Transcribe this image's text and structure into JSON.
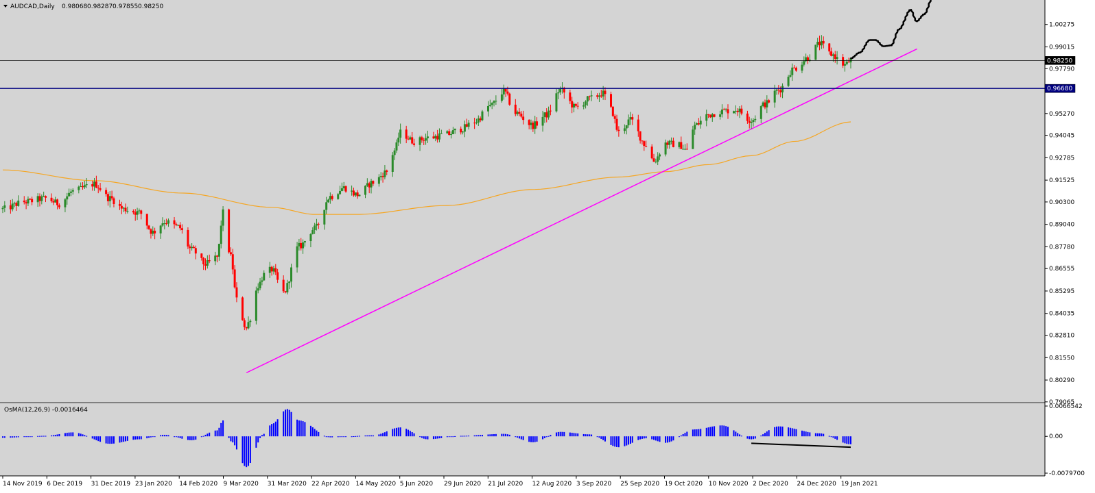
{
  "chart_data": {
    "type": "candlestick",
    "symbol_label": "AUDCAD,Daily",
    "ohlc_readout": [
      "0.98068",
      "0.98287",
      "0.97855",
      "0.98250"
    ],
    "colors": {
      "background": "#d4d4d4",
      "bull": "#2a8a2a",
      "bear": "#ff0000",
      "moving_average": "#f5a623",
      "trendline": "#ff00ff",
      "support_line": "#000080",
      "price_line": "#000000",
      "histogram": "#0000ff",
      "forecast_path": "#000000"
    },
    "price_axis": {
      "min": 0.7906,
      "max": 1.0165,
      "ticks": [
        "1.00275",
        "0.99015",
        "0.97790",
        "0.95270",
        "0.94045",
        "0.92785",
        "0.91525",
        "0.90300",
        "0.89040",
        "0.87780",
        "0.86555",
        "0.85295",
        "0.84035",
        "0.82810",
        "0.81550",
        "0.80290",
        "0.79065"
      ],
      "current_price_label": "0.98250",
      "current_price": 0.9825,
      "support_level_label": "0.96680",
      "support_level": 0.9668
    },
    "time_axis": {
      "labels": [
        "14 Nov 2019",
        "6 Dec 2019",
        "31 Dec 2019",
        "23 Jan 2020",
        "14 Feb 2020",
        "9 Mar 2020",
        "31 Mar 2020",
        "22 Apr 2020",
        "14 May 2020",
        "5 Jun 2020",
        "29 Jun 2020",
        "21 Jul 2020",
        "12 Aug 2020",
        "3 Sep 2020",
        "25 Sep 2020",
        "19 Oct 2020",
        "10 Nov 2020",
        "2 Dec 2020",
        "24 Dec 2020",
        "19 Jan 2021"
      ]
    },
    "price_path": [
      [
        "2019-11-14",
        0.899
      ],
      [
        "2019-11-25",
        0.903
      ],
      [
        "2019-12-06",
        0.905
      ],
      [
        "2019-12-13",
        0.902
      ],
      [
        "2019-12-20",
        0.909
      ],
      [
        "2019-12-31",
        0.913
      ],
      [
        "2020-01-08",
        0.905
      ],
      [
        "2020-01-15",
        0.899
      ],
      [
        "2020-01-23",
        0.897
      ],
      [
        "2020-01-30",
        0.886
      ],
      [
        "2020-02-05",
        0.892
      ],
      [
        "2020-02-12",
        0.889
      ],
      [
        "2020-02-19",
        0.876
      ],
      [
        "2020-02-26",
        0.868
      ],
      [
        "2020-03-03",
        0.872
      ],
      [
        "2020-03-06",
        0.897
      ],
      [
        "2020-03-10",
        0.872
      ],
      [
        "2020-03-13",
        0.848
      ],
      [
        "2020-03-18",
        0.832
      ],
      [
        "2020-03-20",
        0.838
      ],
      [
        "2020-03-24",
        0.856
      ],
      [
        "2020-03-27",
        0.862
      ],
      [
        "2020-03-31",
        0.865
      ],
      [
        "2020-04-06",
        0.852
      ],
      [
        "2020-04-14",
        0.878
      ],
      [
        "2020-04-22",
        0.888
      ],
      [
        "2020-04-30",
        0.906
      ],
      [
        "2020-05-07",
        0.911
      ],
      [
        "2020-05-14",
        0.907
      ],
      [
        "2020-05-22",
        0.914
      ],
      [
        "2020-05-29",
        0.92
      ],
      [
        "2020-06-02",
        0.932
      ],
      [
        "2020-06-05",
        0.942
      ],
      [
        "2020-06-12",
        0.937
      ],
      [
        "2020-06-19",
        0.939
      ],
      [
        "2020-06-29",
        0.941
      ],
      [
        "2020-07-06",
        0.944
      ],
      [
        "2020-07-13",
        0.948
      ],
      [
        "2020-07-21",
        0.957
      ],
      [
        "2020-07-28",
        0.965
      ],
      [
        "2020-08-03",
        0.953
      ],
      [
        "2020-08-12",
        0.946
      ],
      [
        "2020-08-19",
        0.952
      ],
      [
        "2020-08-26",
        0.966
      ],
      [
        "2020-09-03",
        0.956
      ],
      [
        "2020-09-10",
        0.961
      ],
      [
        "2020-09-17",
        0.964
      ],
      [
        "2020-09-21",
        0.955
      ],
      [
        "2020-09-25",
        0.942
      ],
      [
        "2020-10-01",
        0.949
      ],
      [
        "2020-10-09",
        0.935
      ],
      [
        "2020-10-13",
        0.926
      ],
      [
        "2020-10-19",
        0.936
      ],
      [
        "2020-10-26",
        0.935
      ],
      [
        "2020-10-30",
        0.932
      ],
      [
        "2020-11-03",
        0.946
      ],
      [
        "2020-11-10",
        0.952
      ],
      [
        "2020-11-17",
        0.954
      ],
      [
        "2020-11-24",
        0.955
      ],
      [
        "2020-12-02",
        0.949
      ],
      [
        "2020-12-09",
        0.958
      ],
      [
        "2020-12-16",
        0.966
      ],
      [
        "2020-12-24",
        0.978
      ],
      [
        "2020-12-31",
        0.984
      ],
      [
        "2021-01-06",
        0.992
      ],
      [
        "2021-01-12",
        0.986
      ],
      [
        "2021-01-19",
        0.98
      ],
      [
        "2021-01-22",
        0.9825
      ]
    ],
    "moving_average_path": [
      [
        "2019-11-14",
        0.921
      ],
      [
        "2019-12-31",
        0.915
      ],
      [
        "2020-02-14",
        0.908
      ],
      [
        "2020-03-31",
        0.9
      ],
      [
        "2020-04-22",
        0.896
      ],
      [
        "2020-05-14",
        0.896
      ],
      [
        "2020-06-29",
        0.901
      ],
      [
        "2020-08-12",
        0.91
      ],
      [
        "2020-09-25",
        0.917
      ],
      [
        "2020-10-19",
        0.92
      ],
      [
        "2020-11-10",
        0.924
      ],
      [
        "2020-12-02",
        0.929
      ],
      [
        "2020-12-24",
        0.937
      ],
      [
        "2021-01-22",
        0.948
      ]
    ],
    "trendline": {
      "from": [
        "2020-03-18",
        0.807
      ],
      "to": [
        "2021-02-25",
        0.989
      ]
    },
    "forecast_path": [
      [
        "2021-01-22",
        0.9835
      ],
      [
        "2021-01-27",
        0.987
      ],
      [
        "2021-02-01",
        0.994
      ],
      [
        "2021-02-04",
        0.994
      ],
      [
        "2021-02-08",
        0.9905
      ],
      [
        "2021-02-12",
        0.991
      ],
      [
        "2021-02-16",
        1.0
      ],
      [
        "2021-02-22",
        1.011
      ],
      [
        "2021-02-25",
        1.0045
      ],
      [
        "2021-03-01",
        1.0085
      ],
      [
        "2021-03-05",
        1.0172
      ]
    ],
    "indicator": {
      "label": "OsMA(12,26,9) -0.0016464",
      "axis_ticks": [
        "0.0066542",
        "0.00",
        "-0.0079700"
      ],
      "axis_min": -0.00797,
      "axis_max": 0.0066542,
      "path": [
        [
          "2019-11-14",
          -0.0003
        ],
        [
          "2019-12-06",
          0.0001
        ],
        [
          "2019-12-20",
          0.0008
        ],
        [
          "2020-01-08",
          -0.0015
        ],
        [
          "2020-01-23",
          -0.0006
        ],
        [
          "2020-02-05",
          0.0003
        ],
        [
          "2020-02-19",
          -0.0008
        ],
        [
          "2020-03-03",
          0.0012
        ],
        [
          "2020-03-06",
          0.0032
        ],
        [
          "2020-03-10",
          -0.001
        ],
        [
          "2020-03-18",
          -0.0062
        ],
        [
          "2020-03-27",
          0.0005
        ],
        [
          "2020-03-31",
          0.0025
        ],
        [
          "2020-04-08",
          0.0055
        ],
        [
          "2020-04-14",
          0.0032
        ],
        [
          "2020-04-30",
          -0.0002
        ],
        [
          "2020-05-22",
          0.0002
        ],
        [
          "2020-06-05",
          0.0018
        ],
        [
          "2020-06-19",
          -0.0006
        ],
        [
          "2020-07-06",
          0.0001
        ],
        [
          "2020-07-28",
          0.0005
        ],
        [
          "2020-08-12",
          -0.0012
        ],
        [
          "2020-08-26",
          0.0009
        ],
        [
          "2020-09-10",
          0.0004
        ],
        [
          "2020-09-25",
          -0.0022
        ],
        [
          "2020-10-09",
          -0.0004
        ],
        [
          "2020-10-19",
          -0.0013
        ],
        [
          "2020-11-03",
          0.0014
        ],
        [
          "2020-11-17",
          0.0022
        ],
        [
          "2020-12-02",
          -0.0006
        ],
        [
          "2020-12-16",
          0.002
        ],
        [
          "2021-01-06",
          0.0006
        ],
        [
          "2021-01-22",
          -0.0016
        ]
      ],
      "divergence_line": {
        "from": [
          "2020-12-02",
          -0.0014
        ],
        "to": [
          "2021-01-22",
          -0.0022
        ]
      }
    }
  }
}
